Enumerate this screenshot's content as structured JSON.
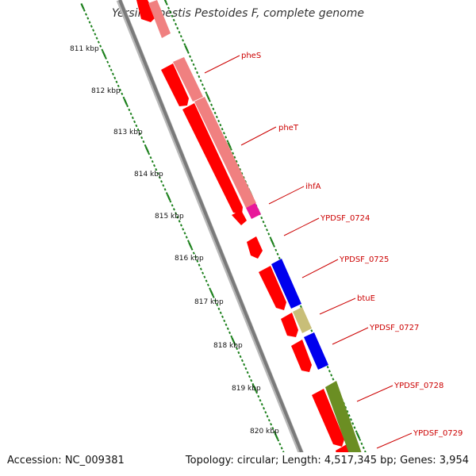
{
  "title": "Yersinia pestis Pestoides F, complete genome",
  "footer": {
    "accession": "Accession: NC_009381",
    "stats": "Topology: circular; Length: 4,517,345 bp; Genes: 3,954"
  },
  "ruler": {
    "labels": [
      "811 kbp",
      "812 kbp",
      "813 kbp",
      "814 kbp",
      "815 kbp",
      "816 kbp",
      "817 kbp",
      "818 kbp",
      "819 kbp",
      "820 kbp"
    ]
  },
  "genes": [
    {
      "name": "pheS"
    },
    {
      "name": "pheT"
    },
    {
      "name": "ihfA"
    },
    {
      "name": "YPDSF_0724"
    },
    {
      "name": "YPDSF_0725"
    },
    {
      "name": "btuE"
    },
    {
      "name": "YPDSF_0727"
    },
    {
      "name": "YPDSF_0728"
    },
    {
      "name": "YPDSF_0729"
    }
  ],
  "colors": {
    "backbone": "#8c8c8c",
    "cds": "#ff0000",
    "gene_salmon": "#f08080",
    "gene_magenta": "#e8189a",
    "gene_blue": "#0000ee",
    "gene_khaki": "#c8be78",
    "gene_olive": "#6b8e23",
    "ticks": "#1a7f1a",
    "label_text": "#cc0000"
  }
}
